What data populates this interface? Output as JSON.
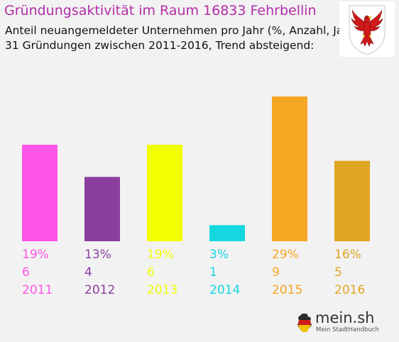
{
  "header": {
    "title": "Gründungsaktivität im Raum 16833 Fehrbellin",
    "subtitle_line1": "Anteil neuangemeldeter Unternehmen pro Jahr (%, Anzahl, Jahr)",
    "subtitle_line2": "31 Gründungen zwischen 2011-2016, Trend absteigend:"
  },
  "chart_data": {
    "type": "bar",
    "categories": [
      "2011",
      "2012",
      "2013",
      "2014",
      "2015",
      "2016"
    ],
    "values": [
      6,
      4,
      6,
      1,
      9,
      5
    ],
    "percent_labels": [
      "19%",
      "13%",
      "19%",
      "3%",
      "29%",
      "16%"
    ],
    "count_labels": [
      "6",
      "4",
      "6",
      "1",
      "9",
      "5"
    ],
    "colors": [
      "#ff55e6",
      "#8a3f9e",
      "#f2ff00",
      "#14d7e0",
      "#f5a623",
      "#e0a522"
    ],
    "ylim": [
      0,
      9
    ],
    "grid": false,
    "legend": "none"
  },
  "logo": {
    "name": "mein.sh",
    "tagline": "Mein StadtHandbuch"
  },
  "icons": {
    "crest": "brandenburg-eagle-crest-icon",
    "logo_mark": "germany-map-pin-icon"
  }
}
